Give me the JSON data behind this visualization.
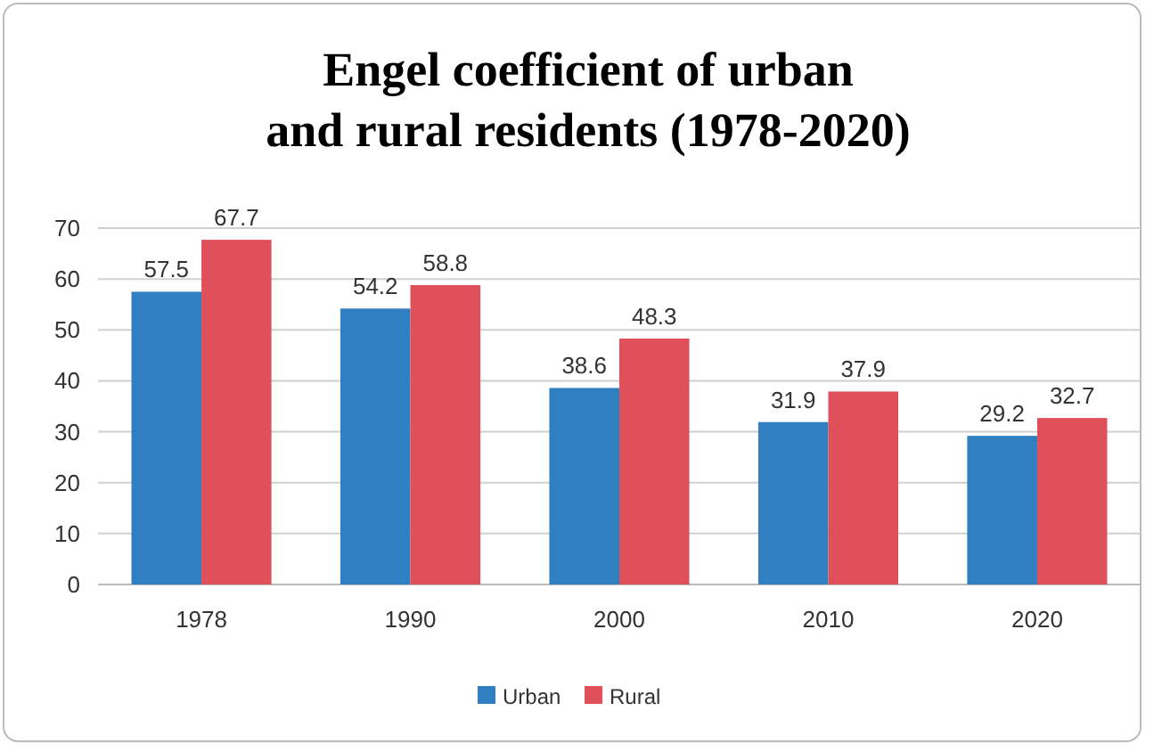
{
  "chart_data": {
    "type": "bar",
    "title": "Engel coefficient of urban and rural residents (1978-2020)",
    "categories": [
      "1978",
      "1990",
      "2000",
      "2010",
      "2020"
    ],
    "series": [
      {
        "name": "Urban",
        "color": "#2f7fc1",
        "values": [
          57.5,
          54.2,
          38.6,
          31.9,
          29.2
        ]
      },
      {
        "name": "Rural",
        "color": "#e0505a",
        "values": [
          67.7,
          58.8,
          48.3,
          37.9,
          32.7
        ]
      }
    ],
    "ylim": [
      0,
      70
    ],
    "yticks": [
      0,
      10,
      20,
      30,
      40,
      50,
      60,
      70
    ],
    "grid": "y",
    "legend": "bottom",
    "data_labels": true
  }
}
